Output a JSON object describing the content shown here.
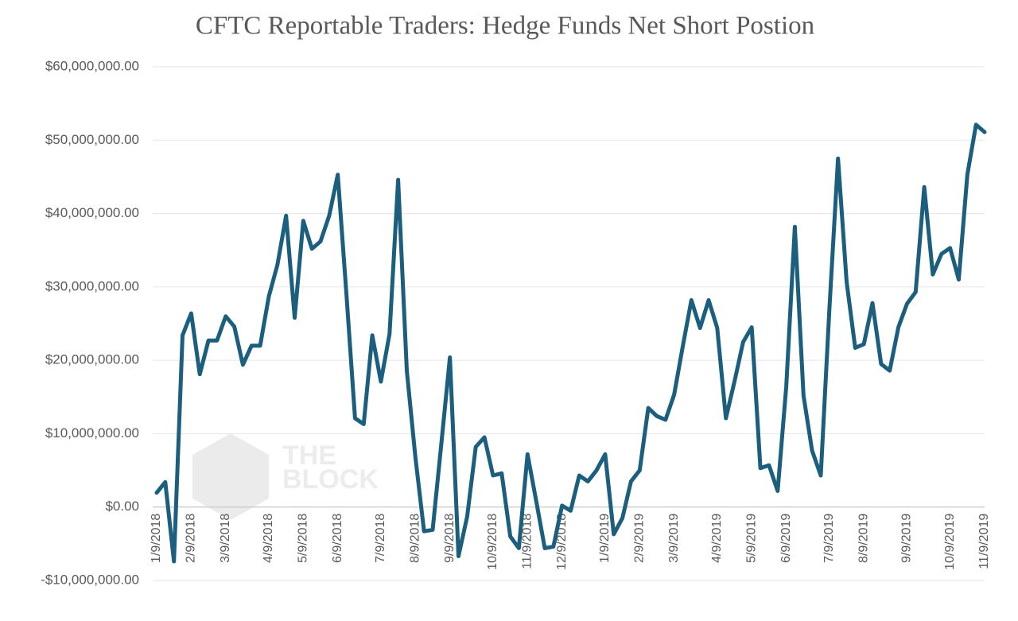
{
  "chart_data": {
    "type": "line",
    "title": "CFTC Reportable Traders: Hedge Funds Net Short Postion",
    "watermark": [
      "THE",
      "BLOCK"
    ],
    "categories": [
      "1/9/2018",
      null,
      null,
      null,
      "2/9/2018",
      null,
      null,
      null,
      "3/9/2018",
      null,
      null,
      null,
      null,
      "4/9/2018",
      null,
      null,
      null,
      "5/9/2018",
      null,
      null,
      null,
      "6/9/2018",
      null,
      null,
      null,
      null,
      "7/9/2018",
      null,
      null,
      null,
      "8/9/2018",
      null,
      null,
      null,
      "9/9/2018",
      null,
      null,
      null,
      null,
      "10/9/2018",
      null,
      null,
      null,
      "11/9/2018",
      null,
      null,
      null,
      "12/9/2018",
      null,
      null,
      null,
      null,
      "1/9/2019",
      null,
      null,
      null,
      "2/9/2019",
      null,
      null,
      null,
      "3/9/2019",
      null,
      null,
      null,
      null,
      "4/9/2019",
      null,
      null,
      null,
      "5/9/2019",
      null,
      null,
      null,
      "6/9/2019",
      null,
      null,
      null,
      null,
      "7/9/2019",
      null,
      null,
      null,
      "8/9/2019",
      null,
      null,
      null,
      null,
      "9/9/2019",
      null,
      null,
      null,
      null,
      "10/9/2019",
      null,
      null,
      null,
      "11/9/2019"
    ],
    "series": [
      {
        "name": "Hedge Funds Net Short Position",
        "color": "#1b5e7e",
        "values": [
          1950000,
          3400000,
          -7400000,
          23400000,
          26400000,
          18100000,
          22700000,
          22700000,
          26000000,
          24600000,
          19400000,
          22000000,
          22000000,
          28700000,
          33000000,
          39700000,
          25800000,
          39000000,
          35200000,
          36200000,
          39700000,
          45300000,
          29000000,
          12100000,
          11300000,
          23400000,
          17100000,
          23600000,
          44600000,
          18600000,
          6800000,
          -3300000,
          -3100000,
          8500000,
          20400000,
          -6700000,
          -1300000,
          8200000,
          9500000,
          4300000,
          4600000,
          -4000000,
          -5600000,
          7200000,
          900000,
          -5600000,
          -5400000,
          200000,
          -500000,
          4300000,
          3500000,
          5000000,
          7200000,
          -3700000,
          -1500000,
          3500000,
          5000000,
          13500000,
          12400000,
          11900000,
          15300000,
          21900000,
          28200000,
          24400000,
          28200000,
          24400000,
          12100000,
          17100000,
          22500000,
          24500000,
          5300000,
          5700000,
          2200000,
          16400000,
          38200000,
          15200000,
          7700000,
          4300000,
          26900000,
          47500000,
          30700000,
          21700000,
          22200000,
          27800000,
          19500000,
          18600000,
          24500000,
          27700000,
          29300000,
          43600000,
          31700000,
          34500000,
          35300000,
          31000000,
          45300000,
          52100000,
          51100000
        ]
      }
    ],
    "ylim": [
      -10000000,
      60000000
    ],
    "yticks": [
      {
        "value": -10000000,
        "label": "-$10,000,000.00"
      },
      {
        "value": 0,
        "label": "$0.00"
      },
      {
        "value": 10000000,
        "label": "$10,000,000.00"
      },
      {
        "value": 20000000,
        "label": "$20,000,000.00"
      },
      {
        "value": 30000000,
        "label": "$30,000,000.00"
      },
      {
        "value": 40000000,
        "label": "$40,000,000.00"
      },
      {
        "value": 50000000,
        "label": "$50,000,000.00"
      },
      {
        "value": 60000000,
        "label": "$60,000,000.00"
      }
    ],
    "grid": true
  }
}
